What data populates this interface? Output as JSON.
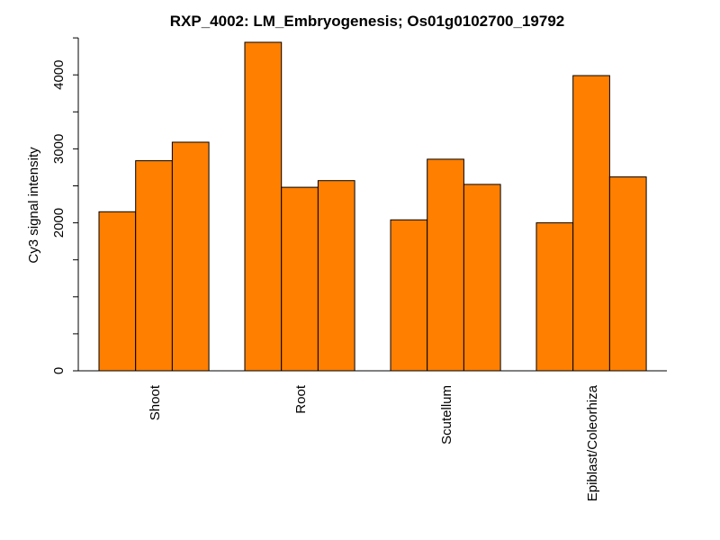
{
  "chart_data": {
    "type": "bar",
    "title": "RXP_4002: LM_Embryogenesis; Os01g0102700_19792",
    "xlabel": "",
    "ylabel": "Cy3 signal intensity",
    "categories": [
      "Shoot",
      "Root",
      "Scutellum",
      "Epiblast/Coleorhiza"
    ],
    "values_grouped": [
      [
        2150,
        2840,
        3090
      ],
      [
        4440,
        2480,
        2570
      ],
      [
        2040,
        2860,
        2520
      ],
      [
        2000,
        3990,
        2620
      ]
    ],
    "y_ticks": [
      0,
      2000,
      3000,
      4000
    ],
    "y_tick_labels": [
      "0",
      "2000",
      "3000",
      "4000"
    ],
    "ylim": [
      0,
      4500
    ],
    "bar_color": "#ff7f00",
    "bar_edge_color": "#000000",
    "grid": false,
    "legend": "none"
  }
}
